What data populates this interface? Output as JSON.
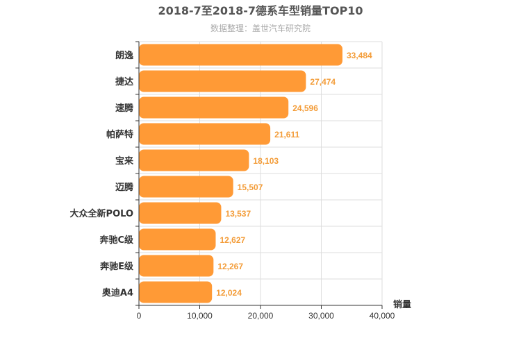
{
  "chart_data": {
    "type": "bar",
    "orientation": "horizontal",
    "title": "2018-7至2018-7德系车型销量TOP10",
    "subtitle": "数据整理：盖世汽车研究院",
    "categories": [
      "朗逸",
      "捷达",
      "速腾",
      "帕萨特",
      "宝来",
      "迈腾",
      "大众全新POLO",
      "奔驰C级",
      "奔驰E级",
      "奥迪A4"
    ],
    "values": [
      33484,
      27474,
      24596,
      21611,
      18103,
      15507,
      13537,
      12627,
      12267,
      12024
    ],
    "value_labels": [
      "33,484",
      "27,474",
      "24,596",
      "21,611",
      "18,103",
      "15,507",
      "13,537",
      "12,627",
      "12,267",
      "12,024"
    ],
    "xlabel": "销量",
    "xlim": [
      0,
      40000
    ],
    "x_ticks": [
      0,
      10000,
      20000,
      30000,
      40000
    ],
    "x_tick_labels": [
      "0",
      "10,000",
      "20,000",
      "30,000",
      "40,000"
    ],
    "grid": true,
    "bar_color": "#ff9a36"
  }
}
